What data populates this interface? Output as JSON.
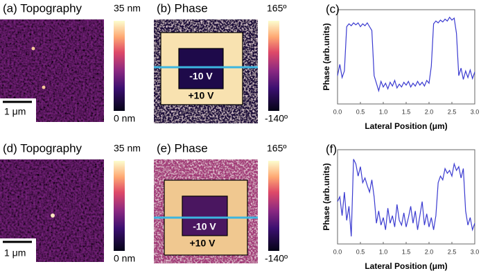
{
  "panels": [
    {
      "label": "(a) Topography",
      "colorbar_max": "35 nm",
      "colorbar_min": "0 nm",
      "scale_bar": "1 μm"
    },
    {
      "label": "(b) Phase",
      "colorbar_max": "165º",
      "colorbar_min": "-140º",
      "inner": "-10 V",
      "outer": "+10 V"
    },
    {
      "label": "(d) Topography",
      "colorbar_max": "35 nm",
      "colorbar_min": "0 nm",
      "scale_bar": "1 μm"
    },
    {
      "label": "(e) Phase",
      "colorbar_max": "165º",
      "colorbar_min": "-140º",
      "inner": "-10 V",
      "outer": "+10 V"
    }
  ],
  "chart_data": [
    {
      "type": "line",
      "title": "(c)",
      "xlabel": "Lateral Position (μm)",
      "ylabel": "Phase (arb.units)",
      "color": "#3a3ad0",
      "x": [
        0,
        0.05,
        0.1,
        0.15,
        0.2,
        0.25,
        0.3,
        0.35,
        0.4,
        0.45,
        0.5,
        0.55,
        0.6,
        0.65,
        0.7,
        0.75,
        0.8,
        0.85,
        0.9,
        0.95,
        1,
        1.05,
        1.1,
        1.15,
        1.2,
        1.25,
        1.3,
        1.35,
        1.4,
        1.45,
        1.5,
        1.55,
        1.6,
        1.65,
        1.7,
        1.75,
        1.8,
        1.85,
        1.9,
        1.95,
        2,
        2.05,
        2.1,
        2.15,
        2.2,
        2.25,
        2.3,
        2.35,
        2.4,
        2.45,
        2.5,
        2.55,
        2.6,
        2.65,
        2.7,
        2.75,
        2.8,
        2.85,
        2.9,
        2.95,
        3
      ],
      "values": [
        0.3,
        0.42,
        0.28,
        0.35,
        0.82,
        0.85,
        0.83,
        0.86,
        0.84,
        0.86,
        0.82,
        0.85,
        0.83,
        0.86,
        0.82,
        0.78,
        0.3,
        0.22,
        0.14,
        0.24,
        0.18,
        0.22,
        0.16,
        0.23,
        0.19,
        0.25,
        0.17,
        0.21,
        0.18,
        0.23,
        0.2,
        0.24,
        0.18,
        0.22,
        0.19,
        0.24,
        0.2,
        0.23,
        0.19,
        0.25,
        0.22,
        0.4,
        0.85,
        0.88,
        0.86,
        0.89,
        0.87,
        0.9,
        0.88,
        0.92,
        0.89,
        0.91,
        0.75,
        0.3,
        0.38,
        0.26,
        0.35,
        0.28,
        0.36,
        0.27,
        0.34
      ],
      "xlim": [
        0,
        3
      ],
      "xticks": [
        {
          "value": 0,
          "label": "0.0"
        },
        0.5,
        {
          "value": 1,
          "label": "1.0"
        },
        1.5,
        {
          "value": 2,
          "label": "2.0"
        },
        2.5,
        {
          "value": 3,
          "label": "3.0"
        }
      ],
      "ylim": [
        0,
        1
      ]
    },
    {
      "type": "line",
      "title": "(f)",
      "xlabel": "Lateral Position (μm)",
      "ylabel": "Phase (arb.units)",
      "color": "#3a3ad0",
      "x": [
        0,
        0.05,
        0.1,
        0.15,
        0.2,
        0.25,
        0.3,
        0.35,
        0.4,
        0.45,
        0.5,
        0.55,
        0.6,
        0.65,
        0.7,
        0.75,
        0.8,
        0.85,
        0.9,
        0.95,
        1,
        1.05,
        1.1,
        1.15,
        1.2,
        1.25,
        1.3,
        1.35,
        1.4,
        1.45,
        1.5,
        1.55,
        1.6,
        1.65,
        1.7,
        1.75,
        1.8,
        1.85,
        1.9,
        1.95,
        2,
        2.05,
        2.1,
        2.15,
        2.2,
        2.25,
        2.3,
        2.35,
        2.4,
        2.45,
        2.5,
        2.55,
        2.6,
        2.65,
        2.7,
        2.75,
        2.8,
        2.85,
        2.9,
        2.95,
        3
      ],
      "values": [
        0.45,
        0.5,
        0.3,
        0.55,
        0.25,
        0.4,
        0.08,
        0.9,
        0.85,
        0.72,
        0.82,
        0.65,
        0.7,
        0.62,
        0.55,
        0.68,
        0.5,
        0.22,
        0.35,
        0.2,
        0.28,
        0.15,
        0.38,
        0.22,
        0.3,
        0.18,
        0.42,
        0.25,
        0.2,
        0.33,
        0.18,
        0.28,
        0.4,
        0.22,
        0.35,
        0.15,
        0.3,
        0.45,
        0.2,
        0.32,
        0.18,
        0.28,
        0.15,
        0.3,
        0.65,
        0.72,
        0.68,
        0.8,
        0.75,
        0.78,
        0.72,
        0.85,
        0.78,
        0.82,
        0.7,
        0.8,
        0.35,
        0.2,
        0.28,
        0.15,
        0.22
      ],
      "xlim": [
        0,
        3
      ],
      "xticks": [
        {
          "value": 0,
          "label": "0.0"
        },
        0.5,
        {
          "value": 1,
          "label": "1.0"
        },
        1.5,
        {
          "value": 2,
          "label": "2.0"
        },
        2.5,
        {
          "value": 3,
          "label": "3.0"
        }
      ],
      "ylim": [
        0,
        1
      ]
    }
  ]
}
